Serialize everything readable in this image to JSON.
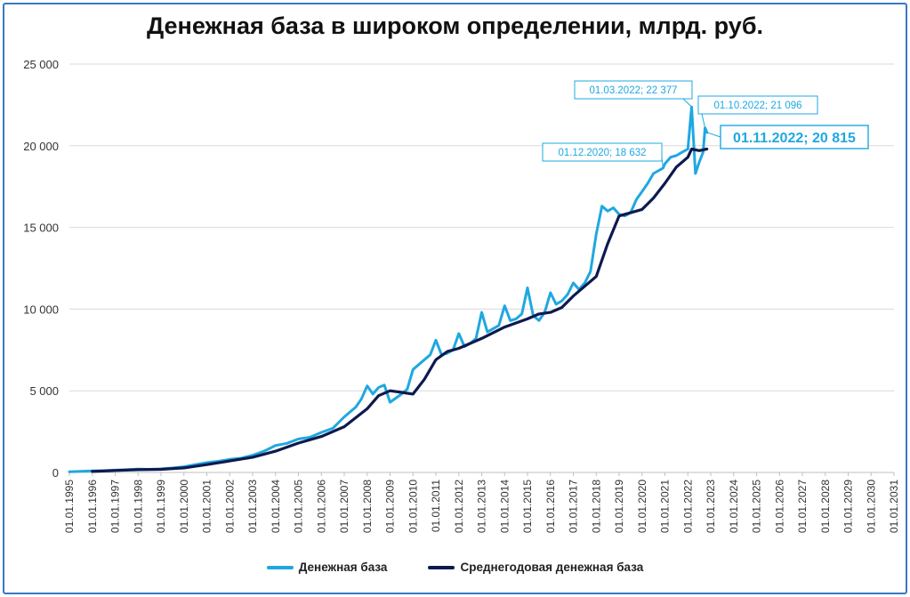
{
  "chart_data": {
    "type": "line",
    "title": "Денежная база в широком определении, млрд. руб.",
    "ylim": [
      0,
      25000
    ],
    "xlim": [
      "1995-01-01",
      "2031-01-01"
    ],
    "y_ticks": [
      {
        "value": 0,
        "label": "0"
      },
      {
        "value": 5000,
        "label": "5 000"
      },
      {
        "value": 10000,
        "label": "10 000"
      },
      {
        "value": 15000,
        "label": "15 000"
      },
      {
        "value": 20000,
        "label": "20 000"
      },
      {
        "value": 25000,
        "label": "25 000"
      }
    ],
    "x_ticks": [
      "01.01.1995",
      "01.01.1996",
      "01.01.1997",
      "01.01.1998",
      "01.01.1999",
      "01.01.2000",
      "01.01.2001",
      "01.01.2002",
      "01.01.2003",
      "01.01.2004",
      "01.01.2005",
      "01.01.2006",
      "01.01.2007",
      "01.01.2008",
      "01.01.2009",
      "01.01.2010",
      "01.01.2011",
      "01.01.2012",
      "01.01.2013",
      "01.01.2014",
      "01.01.2015",
      "01.01.2016",
      "01.01.2017",
      "01.01.2018",
      "01.01.2019",
      "01.01.2020",
      "01.01.2021",
      "01.01.2022",
      "01.01.2023",
      "01.01.2024",
      "01.01.2025",
      "01.01.2026",
      "01.01.2027",
      "01.01.2028",
      "01.01.2029",
      "01.01.2030",
      "01.01.2031"
    ],
    "grid": true,
    "legend_position": "bottom",
    "series": [
      {
        "name": "Денежная база",
        "color": "#1fa8e0",
        "points": [
          [
            "1995-01-01",
            40
          ],
          [
            "1995-07-01",
            70
          ],
          [
            "1996-01-01",
            90
          ],
          [
            "1996-07-01",
            110
          ],
          [
            "1997-01-01",
            140
          ],
          [
            "1997-07-01",
            170
          ],
          [
            "1998-01-01",
            200
          ],
          [
            "1998-07-01",
            190
          ],
          [
            "1999-01-01",
            220
          ],
          [
            "1999-07-01",
            270
          ],
          [
            "2000-01-01",
            350
          ],
          [
            "2000-07-01",
            480
          ],
          [
            "2001-01-01",
            600
          ],
          [
            "2001-07-01",
            680
          ],
          [
            "2002-01-01",
            800
          ],
          [
            "2002-07-01",
            870
          ],
          [
            "2003-01-01",
            1050
          ],
          [
            "2003-07-01",
            1300
          ],
          [
            "2004-01-01",
            1650
          ],
          [
            "2004-07-01",
            1780
          ],
          [
            "2005-01-01",
            2050
          ],
          [
            "2005-07-01",
            2150
          ],
          [
            "2006-01-01",
            2450
          ],
          [
            "2006-07-01",
            2700
          ],
          [
            "2007-01-01",
            3400
          ],
          [
            "2007-04-01",
            3700
          ],
          [
            "2007-07-01",
            4000
          ],
          [
            "2007-10-01",
            4500
          ],
          [
            "2008-01-01",
            5300
          ],
          [
            "2008-04-01",
            4800
          ],
          [
            "2008-07-01",
            5200
          ],
          [
            "2008-10-01",
            5350
          ],
          [
            "2009-01-01",
            4300
          ],
          [
            "2009-04-01",
            4550
          ],
          [
            "2009-07-01",
            4800
          ],
          [
            "2009-10-01",
            5100
          ],
          [
            "2010-01-01",
            6300
          ],
          [
            "2010-04-01",
            6600
          ],
          [
            "2010-07-01",
            6900
          ],
          [
            "2010-10-01",
            7200
          ],
          [
            "2011-01-01",
            8100
          ],
          [
            "2011-04-01",
            7200
          ],
          [
            "2011-07-01",
            7300
          ],
          [
            "2011-10-01",
            7500
          ],
          [
            "2012-01-01",
            8500
          ],
          [
            "2012-04-01",
            7700
          ],
          [
            "2012-07-01",
            7900
          ],
          [
            "2012-10-01",
            8200
          ],
          [
            "2013-01-01",
            9800
          ],
          [
            "2013-04-01",
            8600
          ],
          [
            "2013-07-01",
            8800
          ],
          [
            "2013-10-01",
            9000
          ],
          [
            "2014-01-01",
            10200
          ],
          [
            "2014-04-01",
            9300
          ],
          [
            "2014-07-01",
            9400
          ],
          [
            "2014-10-01",
            9700
          ],
          [
            "2015-01-01",
            11300
          ],
          [
            "2015-04-01",
            9600
          ],
          [
            "2015-07-01",
            9300
          ],
          [
            "2015-10-01",
            9800
          ],
          [
            "2016-01-01",
            11000
          ],
          [
            "2016-04-01",
            10300
          ],
          [
            "2016-07-01",
            10500
          ],
          [
            "2016-10-01",
            10900
          ],
          [
            "2017-01-01",
            11600
          ],
          [
            "2017-04-01",
            11200
          ],
          [
            "2017-07-01",
            11600
          ],
          [
            "2017-10-01",
            12300
          ],
          [
            "2018-01-01",
            14600
          ],
          [
            "2018-04-01",
            16300
          ],
          [
            "2018-07-01",
            16000
          ],
          [
            "2018-10-01",
            16200
          ],
          [
            "2019-01-01",
            15800
          ],
          [
            "2019-04-01",
            15700
          ],
          [
            "2019-07-01",
            15900
          ],
          [
            "2019-10-01",
            16700
          ],
          [
            "2020-01-01",
            17200
          ],
          [
            "2020-04-01",
            17700
          ],
          [
            "2020-07-01",
            18300
          ],
          [
            "2020-12-01",
            18632
          ],
          [
            "2021-01-01",
            18900
          ],
          [
            "2021-04-01",
            19300
          ],
          [
            "2021-07-01",
            19400
          ],
          [
            "2021-10-01",
            19600
          ],
          [
            "2022-01-01",
            19800
          ],
          [
            "2022-03-01",
            22377
          ],
          [
            "2022-05-01",
            18300
          ],
          [
            "2022-07-01",
            19000
          ],
          [
            "2022-09-01",
            19600
          ],
          [
            "2022-10-01",
            21096
          ],
          [
            "2022-11-01",
            20815
          ]
        ]
      },
      {
        "name": "Среднегодовая денежная база",
        "color": "#0d1a4f",
        "points": [
          [
            "1996-01-01",
            60
          ],
          [
            "1997-01-01",
            120
          ],
          [
            "1998-01-01",
            170
          ],
          [
            "1999-01-01",
            190
          ],
          [
            "2000-01-01",
            280
          ],
          [
            "2001-01-01",
            480
          ],
          [
            "2002-01-01",
            700
          ],
          [
            "2003-01-01",
            930
          ],
          [
            "2004-01-01",
            1300
          ],
          [
            "2005-01-01",
            1800
          ],
          [
            "2006-01-01",
            2200
          ],
          [
            "2007-01-01",
            2800
          ],
          [
            "2008-01-01",
            3900
          ],
          [
            "2008-07-01",
            4700
          ],
          [
            "2009-01-01",
            5000
          ],
          [
            "2009-07-01",
            4900
          ],
          [
            "2010-01-01",
            4800
          ],
          [
            "2010-07-01",
            5700
          ],
          [
            "2011-01-01",
            6900
          ],
          [
            "2011-07-01",
            7400
          ],
          [
            "2012-01-01",
            7600
          ],
          [
            "2013-01-01",
            8200
          ],
          [
            "2014-01-01",
            8900
          ],
          [
            "2015-01-01",
            9400
          ],
          [
            "2015-07-01",
            9700
          ],
          [
            "2016-01-01",
            9800
          ],
          [
            "2016-07-01",
            10100
          ],
          [
            "2017-01-01",
            10800
          ],
          [
            "2018-01-01",
            12000
          ],
          [
            "2018-07-01",
            14000
          ],
          [
            "2019-01-01",
            15700
          ],
          [
            "2019-07-01",
            15900
          ],
          [
            "2020-01-01",
            16100
          ],
          [
            "2020-07-01",
            16800
          ],
          [
            "2021-01-01",
            17700
          ],
          [
            "2021-07-01",
            18700
          ],
          [
            "2022-01-01",
            19300
          ],
          [
            "2022-03-01",
            19800
          ],
          [
            "2022-07-01",
            19700
          ],
          [
            "2022-11-01",
            19800
          ]
        ]
      }
    ],
    "annotations": [
      {
        "text": "01.03.2022; 22 377",
        "x": "2022-03-01",
        "y": 22377,
        "emphasis": false
      },
      {
        "text": "01.10.2022; 21 096",
        "x": "2022-10-01",
        "y": 21096,
        "emphasis": false
      },
      {
        "text": "01.12.2020; 18 632",
        "x": "2020-12-01",
        "y": 18632,
        "emphasis": false
      },
      {
        "text": "01.11.2022; 20 815",
        "x": "2022-11-01",
        "y": 20815,
        "emphasis": true
      }
    ]
  },
  "legend": {
    "item1": "Денежная база",
    "item2": "Среднегодовая денежная база"
  }
}
